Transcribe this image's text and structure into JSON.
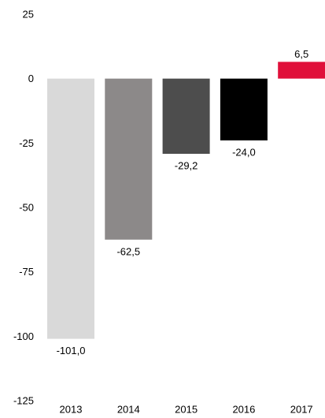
{
  "chart_data": {
    "type": "bar",
    "title": "",
    "xlabel": "",
    "ylabel": "",
    "categories": [
      "2013",
      "2014",
      "2015",
      "2016",
      "2017"
    ],
    "values": [
      -101.0,
      -62.5,
      -29.2,
      -24.0,
      6.5
    ],
    "value_labels": [
      "-101,0",
      "-62,5",
      "-29,2",
      "-24,0",
      "6,5"
    ],
    "bar_colors": [
      "#d9d9d9",
      "#8c8989",
      "#4d4d4d",
      "#000000",
      "#e0103a"
    ],
    "ylim": [
      -125,
      25
    ],
    "yticks": [
      25,
      0,
      -25,
      -50,
      -75,
      -100,
      -125
    ],
    "grid": false,
    "legend": "none"
  }
}
